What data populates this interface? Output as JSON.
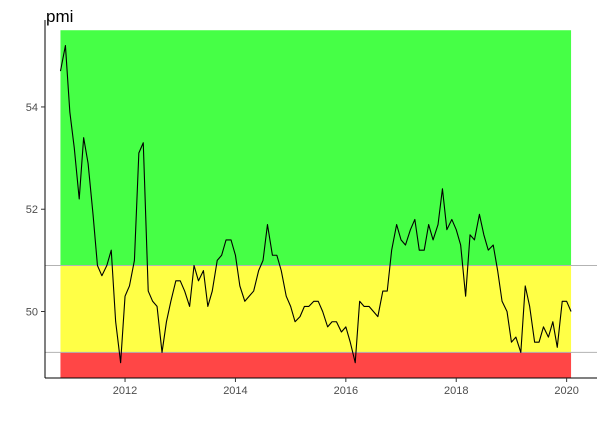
{
  "chart_data": {
    "type": "line",
    "title": "pmi",
    "xlabel": "",
    "ylabel": "",
    "xlim": [
      2010.55,
      2020.55
    ],
    "ylim": [
      48.7,
      55.7
    ],
    "x_ticks": [
      2012,
      2014,
      2016,
      2018,
      2020
    ],
    "x_tick_labels": [
      "2012",
      "2014",
      "2016",
      "2018",
      "2020"
    ],
    "y_ticks": [
      50,
      52,
      54
    ],
    "y_tick_labels": [
      "50",
      "52",
      "54"
    ],
    "grid": false,
    "bands": [
      {
        "ymin": 50.9,
        "ymax": 55.5,
        "color": "#46ff46"
      },
      {
        "ymin": 49.2,
        "ymax": 50.9,
        "color": "#ffff46"
      },
      {
        "ymin": 48.7,
        "ymax": 49.2,
        "color": "#ff4646"
      }
    ],
    "hlines": [
      50.9,
      49.2
    ],
    "series": [
      {
        "color": "#000000",
        "x": [
          2010.83,
          2010.92,
          2011.0,
          2011.08,
          2011.17,
          2011.25,
          2011.33,
          2011.42,
          2011.5,
          2011.58,
          2011.67,
          2011.75,
          2011.83,
          2011.92,
          2012.0,
          2012.08,
          2012.17,
          2012.25,
          2012.33,
          2012.42,
          2012.5,
          2012.58,
          2012.67,
          2012.75,
          2012.83,
          2012.92,
          2013.0,
          2013.08,
          2013.17,
          2013.25,
          2013.33,
          2013.42,
          2013.5,
          2013.58,
          2013.67,
          2013.75,
          2013.83,
          2013.92,
          2014.0,
          2014.08,
          2014.17,
          2014.25,
          2014.33,
          2014.42,
          2014.5,
          2014.58,
          2014.67,
          2014.75,
          2014.83,
          2014.92,
          2015.0,
          2015.08,
          2015.17,
          2015.25,
          2015.33,
          2015.42,
          2015.5,
          2015.58,
          2015.67,
          2015.75,
          2015.83,
          2015.92,
          2016.0,
          2016.08,
          2016.17,
          2016.25,
          2016.33,
          2016.42,
          2016.5,
          2016.58,
          2016.67,
          2016.75,
          2016.83,
          2016.92,
          2017.0,
          2017.08,
          2017.17,
          2017.25,
          2017.33,
          2017.42,
          2017.5,
          2017.58,
          2017.67,
          2017.75,
          2017.83,
          2017.92,
          2018.0,
          2018.08,
          2018.17,
          2018.25,
          2018.33,
          2018.42,
          2018.5,
          2018.58,
          2018.67,
          2018.75,
          2018.83,
          2018.92,
          2019.0,
          2019.08,
          2019.17,
          2019.25,
          2019.33,
          2019.42,
          2019.5,
          2019.58,
          2019.67,
          2019.75,
          2019.83,
          2019.92,
          2020.0,
          2020.08
        ],
        "values": [
          54.7,
          55.2,
          53.9,
          53.2,
          52.2,
          53.4,
          52.9,
          51.9,
          50.9,
          50.7,
          50.9,
          51.2,
          49.8,
          49.0,
          50.3,
          50.5,
          51.0,
          53.1,
          53.3,
          50.4,
          50.2,
          50.1,
          49.2,
          49.8,
          50.2,
          50.6,
          50.6,
          50.4,
          50.1,
          50.9,
          50.6,
          50.8,
          50.1,
          50.4,
          51.0,
          51.1,
          51.4,
          51.4,
          51.1,
          50.5,
          50.2,
          50.3,
          50.4,
          50.8,
          51.0,
          51.7,
          51.1,
          51.1,
          50.8,
          50.3,
          50.1,
          49.8,
          49.9,
          50.1,
          50.1,
          50.2,
          50.2,
          50.0,
          49.7,
          49.8,
          49.8,
          49.6,
          49.7,
          49.4,
          49.0,
          50.2,
          50.1,
          50.1,
          50.0,
          49.9,
          50.4,
          50.4,
          51.2,
          51.7,
          51.4,
          51.3,
          51.6,
          51.8,
          51.2,
          51.2,
          51.7,
          51.4,
          51.7,
          52.4,
          51.6,
          51.8,
          51.6,
          51.3,
          50.3,
          51.5,
          51.4,
          51.9,
          51.5,
          51.2,
          51.3,
          50.8,
          50.2,
          50.0,
          49.4,
          49.5,
          49.2,
          50.5,
          50.1,
          49.4,
          49.4,
          49.7,
          49.5,
          49.8,
          49.3,
          50.2,
          50.2,
          50.0
        ]
      }
    ]
  }
}
